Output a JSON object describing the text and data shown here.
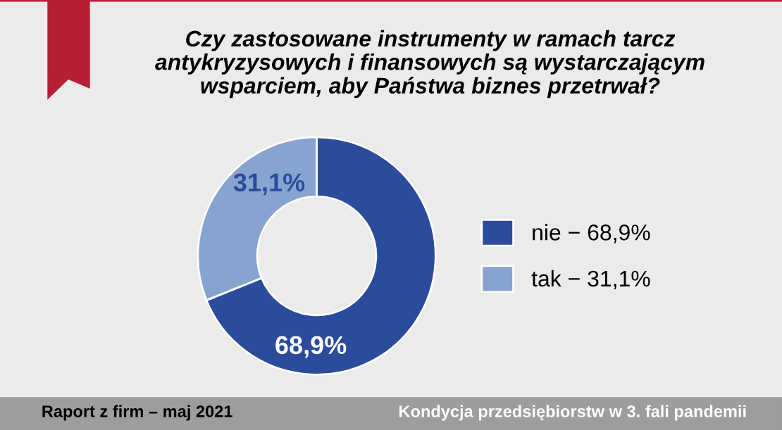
{
  "chart_data": {
    "type": "donut",
    "title": "Czy zastosowane instrumenty w ramach tarcz\nantykryzysowych i finansowych są wystarczającym\nwsparciem, aby Państwa biznes przetrwał?",
    "categories": [
      "nie − 68,9%",
      "tak − 31,1%"
    ],
    "values": [
      68.9,
      31.1
    ],
    "colors": [
      "#2b4c9a",
      "#87a3d0"
    ],
    "value_labels": [
      "68,9%",
      "31,1%"
    ],
    "legend": "right",
    "annotations": [
      "Raport z firm – maj 2021",
      "Kondycja przedsiębiorstw w 3. fali pandemii"
    ]
  }
}
